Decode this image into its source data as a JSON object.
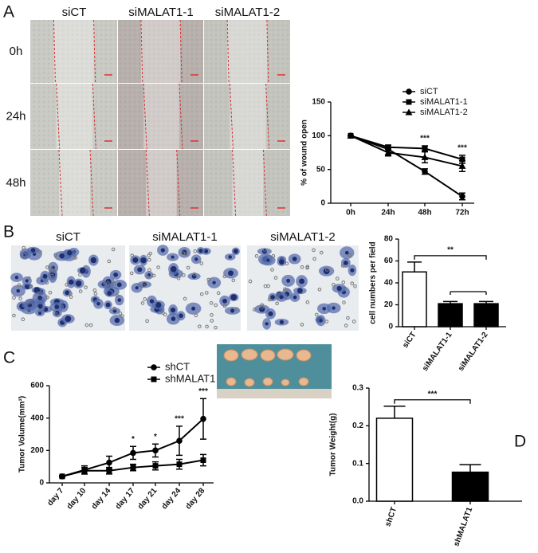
{
  "panel_labels": [
    "A",
    "B",
    "C",
    "D"
  ],
  "wound_images": {
    "columns": [
      "siCT",
      "siMALAT1-1",
      "siMALAT1-2"
    ],
    "rows": [
      "0h",
      "24h",
      "48h"
    ]
  },
  "transwell_images": {
    "columns": [
      "siCT",
      "siMALAT1-1",
      "siMALAT1-2"
    ]
  },
  "chart_data": [
    {
      "type": "line",
      "ylabel": "% of wound open",
      "categories": [
        "0h",
        "24h",
        "48h",
        "72h"
      ],
      "series": [
        {
          "name": "siCT",
          "color": "#000000",
          "marker": "circle",
          "values": [
            100,
            80,
            47,
            10
          ],
          "errors": [
            0,
            3,
            4,
            5
          ]
        },
        {
          "name": "siMALAT1-1",
          "color": "#000000",
          "marker": "square",
          "values": [
            100,
            83,
            81,
            65
          ],
          "errors": [
            0,
            3,
            4,
            6
          ]
        },
        {
          "name": "siMALAT1-2",
          "color": "#000000",
          "marker": "triangle",
          "values": [
            100,
            75,
            68,
            55
          ],
          "errors": [
            0,
            5,
            8,
            8
          ]
        }
      ],
      "ylim": [
        0,
        150
      ],
      "yticks": [
        0,
        50,
        100,
        150
      ],
      "annotations": [
        {
          "text": "***",
          "category": "48h"
        },
        {
          "text": "***",
          "category": "72h"
        }
      ]
    },
    {
      "type": "bar",
      "ylabel": "cell numbers per field",
      "categories": [
        "siCT",
        "siMALAT1-1",
        "siMALAT1-2"
      ],
      "values": [
        50,
        21,
        21
      ],
      "errors": [
        9,
        2,
        2
      ],
      "colors": [
        "#ffffff",
        "#000000",
        "#000000"
      ],
      "ylim": [
        0,
        80
      ],
      "yticks": [
        0,
        20,
        40,
        60,
        80
      ],
      "brackets": [
        {
          "text": "**",
          "from": "siCT",
          "to": "siMALAT1-2"
        }
      ]
    },
    {
      "type": "line",
      "ylabel": "Tumor Volume(mm³)",
      "categories": [
        "day 7",
        "day 10",
        "day 14",
        "day 17",
        "day 21",
        "day 24",
        "day 28"
      ],
      "series": [
        {
          "name": "shCT",
          "color": "#000000",
          "marker": "circle",
          "values": [
            40,
            80,
            125,
            185,
            200,
            260,
            395
          ],
          "errors": [
            5,
            25,
            40,
            40,
            40,
            90,
            125
          ]
        },
        {
          "name": "shMALAT1",
          "color": "#000000",
          "marker": "square",
          "values": [
            40,
            75,
            75,
            95,
            105,
            115,
            140
          ],
          "errors": [
            5,
            20,
            20,
            20,
            25,
            30,
            35
          ]
        }
      ],
      "ylim": [
        0,
        600
      ],
      "yticks": [
        0,
        200,
        400,
        600
      ],
      "annotations": [
        {
          "text": "*",
          "category": "day 17"
        },
        {
          "text": "*",
          "category": "day 21"
        },
        {
          "text": "***",
          "category": "day 24"
        },
        {
          "text": "***",
          "category": "day 28"
        }
      ]
    },
    {
      "type": "bar",
      "ylabel": "Tumor Weight(g)",
      "categories": [
        "shCT",
        "shMALAT1"
      ],
      "values": [
        0.22,
        0.077
      ],
      "errors": [
        0.032,
        0.02
      ],
      "colors": [
        "#ffffff",
        "#000000"
      ],
      "ylim": [
        0,
        0.3
      ],
      "yticks": [
        {
          "value": 0,
          "label": "0.0"
        },
        0.1,
        0.2,
        0.3
      ],
      "brackets": [
        {
          "text": "***",
          "from": "shCT",
          "to": "shMALAT1"
        }
      ]
    }
  ]
}
